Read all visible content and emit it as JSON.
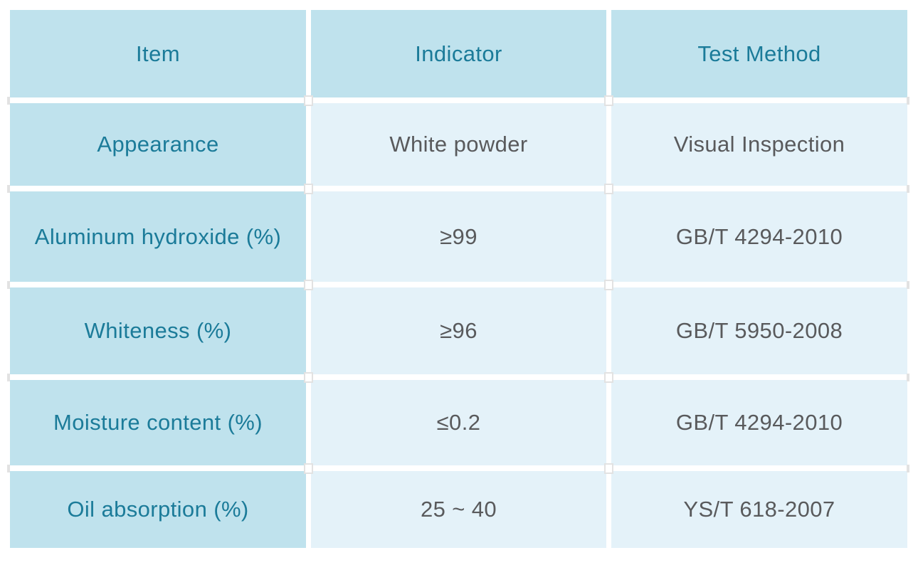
{
  "chart_data": {
    "type": "table",
    "columns": [
      "Item",
      "Indicator",
      "Test Method"
    ],
    "rows": [
      [
        "Appearance",
        "White powder",
        "Visual Inspection"
      ],
      [
        "Aluminum hydroxide (%)",
        "≥99",
        "GB/T 4294-2010"
      ],
      [
        "Whiteness (%)",
        "≥96",
        "GB/T 5950-2008"
      ],
      [
        "Moisture content (%)",
        "≤0.2",
        "GB/T 4294-2010"
      ],
      [
        "Oil absorption (%)",
        "25 ~ 40",
        "YS/T 618-2007"
      ]
    ]
  },
  "colors": {
    "header_and_item_bg": "#bfe2ed",
    "value_cell_bg": "#e4f2f9",
    "header_and_item_text": "#1b7b99",
    "value_text": "#595a5c",
    "gutter": "#ffffff",
    "handle_border": "#e2e2e2"
  }
}
